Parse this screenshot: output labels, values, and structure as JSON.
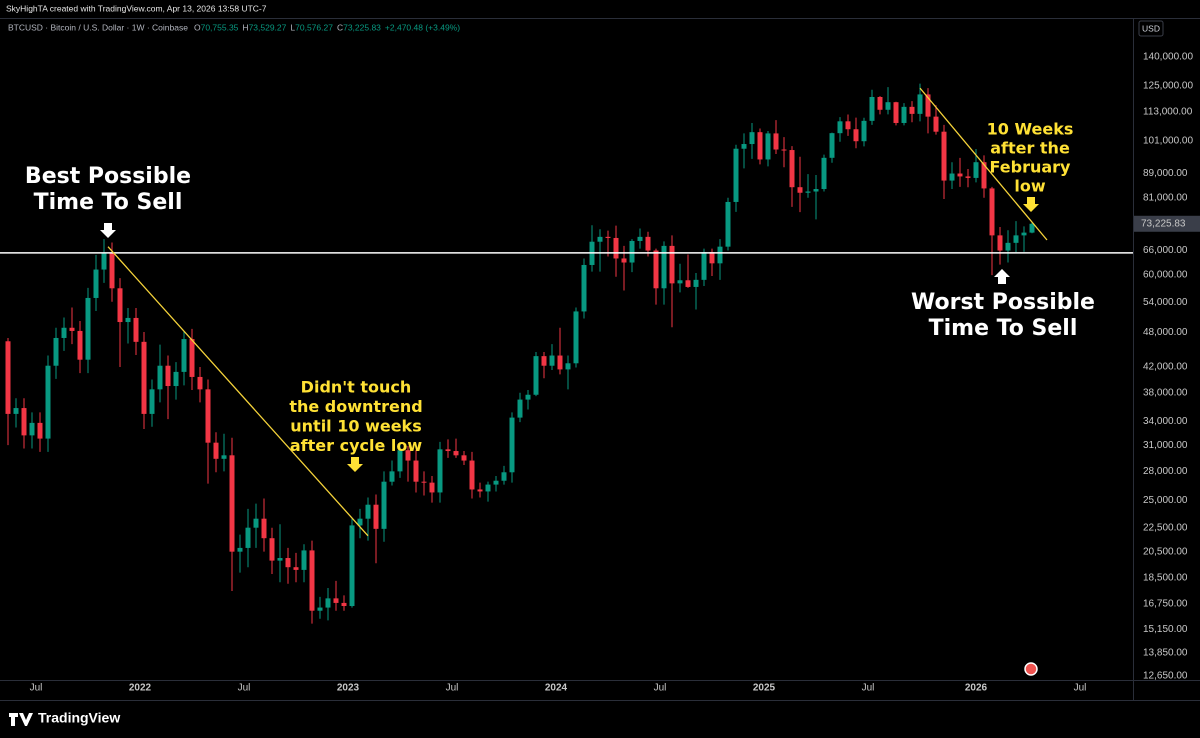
{
  "header": {
    "credit": "SkyHighTA created with TradingView.com, Apr 13, 2026 13:58 UTC-7"
  },
  "chart_data": {
    "type": "candlestick",
    "symbol": "BTCUSD · Bitcoin / U.S. Dollar · 1W · Coinbase",
    "ohlc_legend": [
      {
        "key": "O",
        "value": "70,755.35"
      },
      {
        "key": "H",
        "value": "73,529.27"
      },
      {
        "key": "L",
        "value": "70,576.27"
      },
      {
        "key": "C",
        "value": "73,225.83"
      }
    ],
    "change": "+2,470.48 (+3.49%)",
    "currency": "USD",
    "up_color": "#089981",
    "down_color": "#f23645",
    "log_scale": true,
    "grid": false,
    "xlim": [
      -33.25,
      248.25
    ],
    "xticks": [
      {
        "value": -26,
        "label": "Jul"
      },
      {
        "value": 0,
        "label": "2022"
      },
      {
        "value": 26,
        "label": "Jul"
      },
      {
        "value": 52,
        "label": "2023"
      },
      {
        "value": 78,
        "label": "Jul"
      },
      {
        "value": 104,
        "label": "2024"
      },
      {
        "value": 130,
        "label": "Jul"
      },
      {
        "value": 156,
        "label": "2025"
      },
      {
        "value": 182,
        "label": "Jul"
      },
      {
        "value": 209,
        "label": "2026"
      },
      {
        "value": 235,
        "label": "Jul"
      }
    ],
    "ylim": [
      12455,
      162800
    ],
    "yticks": [
      {
        "value": 140000,
        "label": "140,000.00"
      },
      {
        "value": 125000,
        "label": "125,000.00"
      },
      {
        "value": 113000,
        "label": "113,000.00"
      },
      {
        "value": 101000,
        "label": "101,000.00"
      },
      {
        "value": 89000,
        "label": "89,000.00"
      },
      {
        "value": 81000,
        "label": "81,000.00"
      },
      {
        "value": 66000,
        "label": "66,000.00"
      },
      {
        "value": 60000,
        "label": "60,000.00"
      },
      {
        "value": 54000,
        "label": "54,000.00"
      },
      {
        "value": 48000,
        "label": "48,000.00"
      },
      {
        "value": 42000,
        "label": "42,000.00"
      },
      {
        "value": 38000,
        "label": "38,000.00"
      },
      {
        "value": 34000,
        "label": "34,000.00"
      },
      {
        "value": 31000,
        "label": "31,000.00"
      },
      {
        "value": 28000,
        "label": "28,000.00"
      },
      {
        "value": 25000,
        "label": "25,000.00"
      },
      {
        "value": 22500,
        "label": "22,500.00"
      },
      {
        "value": 20500,
        "label": "20,500.00"
      },
      {
        "value": 18500,
        "label": "18,500.00"
      },
      {
        "value": 16750,
        "label": "16,750.00"
      },
      {
        "value": 15150,
        "label": "15,150.00"
      },
      {
        "value": 13850,
        "label": "13,850.00"
      },
      {
        "value": 12650,
        "label": "12,650.00"
      }
    ],
    "last_price": {
      "value": 73225.83,
      "label": "73,225.83"
    },
    "hline": {
      "value": 65400,
      "color": "#ffffff"
    },
    "trendlines": [
      {
        "x": [
          -8,
          57
        ],
        "y": [
          67000,
          21800
        ],
        "color": "#f5d33a"
      },
      {
        "x": [
          195,
          226.75
        ],
        "y": [
          124000,
          68750
        ],
        "color": "#f5d33a"
      }
    ],
    "annotations": [
      {
        "lines": [
          "Best Possible",
          "Time To Sell"
        ],
        "color": "#ffffff"
      },
      {
        "lines": [
          "Didn't touch",
          "the downtrend",
          "until 10 weeks",
          "after cycle low"
        ],
        "color": "#ffe135"
      },
      {
        "lines": [
          "10 Weeks",
          "after the",
          "February",
          "low"
        ],
        "color": "#ffe135"
      },
      {
        "lines": [
          "Worst Possible",
          "Time To Sell"
        ],
        "color": "#ffffff"
      }
    ],
    "x": [
      -33,
      -31,
      -29,
      -27,
      -25,
      -23,
      -21,
      -19,
      -17,
      -15,
      -13,
      -11,
      -9,
      -7,
      -5,
      -3,
      -1,
      1,
      3,
      5,
      7,
      9,
      11,
      13,
      15,
      17,
      19,
      21,
      23,
      25,
      27,
      29,
      31,
      33,
      35,
      37,
      39,
      41,
      43,
      45,
      47,
      49,
      51,
      53,
      55,
      57,
      59,
      61,
      63,
      65,
      67,
      69,
      71,
      73,
      75,
      77,
      79,
      81,
      83,
      85,
      87,
      89,
      91,
      93,
      95,
      97,
      99,
      101,
      103,
      105,
      107,
      109,
      111,
      113,
      115,
      117,
      119,
      121,
      123,
      125,
      127,
      129,
      131,
      133,
      135,
      137,
      139,
      141,
      143,
      145,
      147,
      149,
      151,
      153,
      155,
      157,
      159,
      161,
      163,
      165,
      167,
      169,
      171,
      173,
      175,
      177,
      179,
      181,
      183,
      185,
      187,
      189,
      191,
      193,
      195,
      197,
      199,
      201,
      203,
      205,
      207,
      209,
      211,
      213,
      215,
      217,
      219,
      221,
      223
    ],
    "open": [
      46400,
      35000,
      35800,
      32200,
      33800,
      31800,
      42200,
      47000,
      48900,
      48300,
      43200,
      54900,
      61300,
      65500,
      57000,
      50000,
      50800,
      46300,
      35000,
      38500,
      42200,
      39000,
      41200,
      46800,
      40400,
      38500,
      31300,
      29400,
      29800,
      20500,
      20800,
      22500,
      23300,
      21600,
      19800,
      20000,
      19300,
      19100,
      20600,
      16300,
      16500,
      17100,
      16800,
      16600,
      22700,
      23300,
      24600,
      22400,
      26900,
      28000,
      30400,
      29200,
      26900,
      26800,
      25800,
      30500,
      30300,
      29800,
      29200,
      26100,
      25900,
      26600,
      27000,
      27900,
      34500,
      37000,
      37700,
      43800,
      42200,
      43900,
      41600,
      42600,
      52100,
      62400,
      68300,
      69600,
      69300,
      64000,
      63000,
      68500,
      69600,
      66000,
      57000,
      67200,
      58100,
      58800,
      57300,
      58900,
      65600,
      62800,
      67000,
      79700,
      98000,
      99800,
      104500,
      94000,
      104000,
      97700,
      97500,
      84400,
      82600,
      83000,
      83800,
      94600,
      104100,
      109000,
      105700,
      100900,
      109200,
      119800,
      114000,
      117400,
      108300,
      115300,
      112200,
      121000,
      111000,
      104700,
      86600,
      89000,
      88000,
      87500,
      93000,
      84000,
      70000,
      66000,
      68000,
      70000,
      70755.35
    ],
    "high": [
      47000,
      37200,
      37200,
      35200,
      35200,
      43900,
      48900,
      50900,
      52900,
      50200,
      57100,
      64900,
      69000,
      68100,
      59300,
      52800,
      52800,
      48100,
      40000,
      45800,
      43900,
      42800,
      48200,
      48700,
      42000,
      40000,
      32600,
      32400,
      31900,
      21900,
      24200,
      24700,
      25200,
      22500,
      22800,
      20800,
      20400,
      21100,
      21400,
      17200,
      17800,
      18300,
      17300,
      23300,
      24200,
      25300,
      25600,
      28000,
      29200,
      31000,
      30900,
      30400,
      28000,
      27500,
      31400,
      31700,
      31800,
      30300,
      30200,
      26800,
      26900,
      27500,
      28600,
      35200,
      38000,
      38400,
      44500,
      44500,
      45900,
      48900,
      43900,
      52900,
      64000,
      72800,
      71700,
      71300,
      72700,
      67200,
      69000,
      71900,
      71000,
      66500,
      68400,
      70000,
      62700,
      65000,
      60500,
      66500,
      66500,
      69000,
      81000,
      99500,
      104000,
      108300,
      106000,
      105000,
      109500,
      102500,
      99000,
      95000,
      88800,
      88500,
      95800,
      104300,
      110800,
      111900,
      110600,
      110500,
      123200,
      120200,
      124500,
      117600,
      117000,
      117900,
      126200,
      124000,
      116000,
      107500,
      93000,
      94600,
      90600,
      97900,
      95500,
      84500,
      72300,
      71400,
      74000,
      72500,
      73529.27
    ],
    "low": [
      31000,
      33200,
      30600,
      30600,
      30200,
      30200,
      40100,
      44700,
      45900,
      41000,
      41000,
      52200,
      58200,
      54100,
      42000,
      46000,
      44000,
      33000,
      33300,
      36600,
      34300,
      37000,
      39100,
      38400,
      36600,
      26700,
      27900,
      28000,
      17600,
      18900,
      19300,
      20800,
      20500,
      18800,
      18200,
      18100,
      18200,
      18200,
      15500,
      15800,
      15700,
      16300,
      16300,
      16500,
      21600,
      21400,
      19600,
      21300,
      26500,
      27300,
      26900,
      25800,
      25500,
      24800,
      24800,
      29500,
      29500,
      28700,
      25200,
      25300,
      24900,
      25900,
      26600,
      26800,
      33900,
      35600,
      37500,
      40200,
      41500,
      40800,
      38500,
      41900,
      50700,
      60800,
      60800,
      64500,
      59600,
      56500,
      60700,
      66500,
      64500,
      53500,
      53500,
      49000,
      56100,
      57100,
      52500,
      57500,
      59800,
      58900,
      66000,
      76700,
      90800,
      94200,
      92200,
      91500,
      96000,
      91200,
      78200,
      76600,
      81000,
      74500,
      83000,
      92800,
      100700,
      103000,
      98200,
      98900,
      107500,
      112000,
      112000,
      107300,
      107300,
      108600,
      109000,
      104000,
      103500,
      80600,
      83800,
      84500,
      84400,
      86000,
      81000,
      60000,
      62500,
      63000,
      65600,
      65700,
      70576.27
    ],
    "close": [
      35000,
      35800,
      32200,
      33800,
      31800,
      42200,
      47000,
      48900,
      48300,
      43200,
      54900,
      61300,
      65500,
      57000,
      50000,
      50800,
      46300,
      35000,
      38500,
      42200,
      39000,
      41200,
      46800,
      40400,
      38500,
      31300,
      29400,
      29800,
      20500,
      20800,
      22500,
      23300,
      21600,
      19800,
      20000,
      19300,
      19100,
      20600,
      16300,
      16500,
      17100,
      16800,
      16600,
      22700,
      23300,
      24600,
      22400,
      26900,
      28000,
      30400,
      29200,
      26900,
      26800,
      25800,
      30500,
      30300,
      29800,
      29200,
      26100,
      25900,
      26600,
      27000,
      27900,
      34500,
      37000,
      37700,
      43800,
      42200,
      43900,
      41600,
      42600,
      52100,
      62400,
      68300,
      69600,
      69300,
      64000,
      63000,
      68500,
      69600,
      66000,
      57000,
      67200,
      58100,
      58800,
      57300,
      58900,
      65600,
      62800,
      67000,
      79700,
      98000,
      99800,
      104500,
      94000,
      104000,
      97700,
      97500,
      84400,
      82600,
      83000,
      83800,
      94600,
      104100,
      109000,
      105700,
      100900,
      109200,
      119800,
      114000,
      117400,
      108300,
      115300,
      112200,
      121000,
      111000,
      104700,
      86600,
      89000,
      88000,
      87500,
      93000,
      84000,
      70000,
      66000,
      68000,
      70000,
      70755.35,
      73225.83
    ]
  },
  "footer": {
    "brand": "TradingView"
  }
}
